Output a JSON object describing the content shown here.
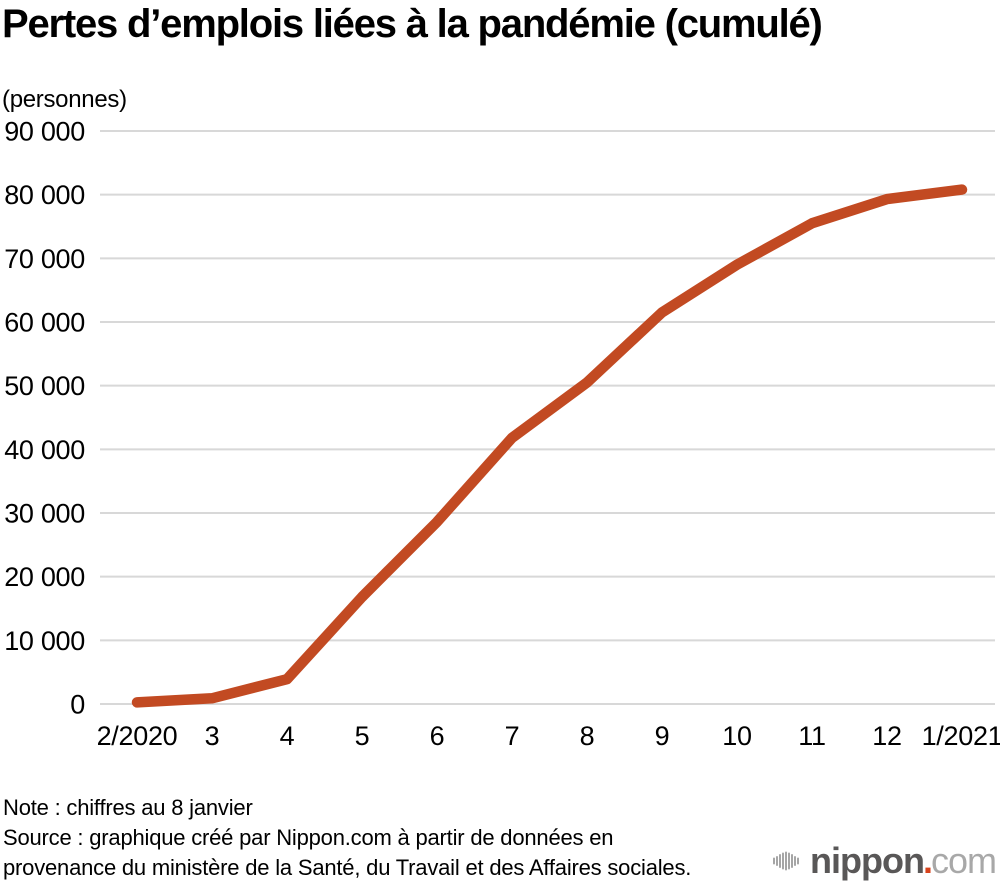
{
  "chart_data": {
    "type": "line",
    "title": "Pertes d’emplois liées à la pandémie (cumulé)",
    "unit_label": "(personnes)",
    "categories": [
      "2/2020",
      "3",
      "4",
      "5",
      "6",
      "7",
      "8",
      "9",
      "10",
      "11",
      "12",
      "1/2021"
    ],
    "values": [
      250,
      900,
      3900,
      16800,
      28600,
      41800,
      50500,
      61500,
      69000,
      75500,
      79300,
      80800
    ],
    "y_axis": {
      "min": 0,
      "max": 90000,
      "step": 10000,
      "tick_labels": [
        "0",
        "10 000",
        "20 000",
        "30 000",
        "40 000",
        "50 000",
        "60 000",
        "70 000",
        "80 000",
        "90 000"
      ]
    },
    "grid": true,
    "legend": "none",
    "line_color": "#c24a22",
    "grid_color": "#d8d8d8"
  },
  "footer": {
    "note": "Note : chiffres au 8 janvier",
    "source_line1": "Source : graphique créé par Nippon.com à partir de données en",
    "source_line2": "provenance du ministère de la Santé, du Travail et des Affaires sociales."
  },
  "logo": {
    "icon": "soundwave-icon",
    "brand": "nippon",
    "dot": ".",
    "tld": "com",
    "brand_color": "#595757",
    "dot_color": "#d8431c",
    "tld_color": "#a8a8a8"
  }
}
